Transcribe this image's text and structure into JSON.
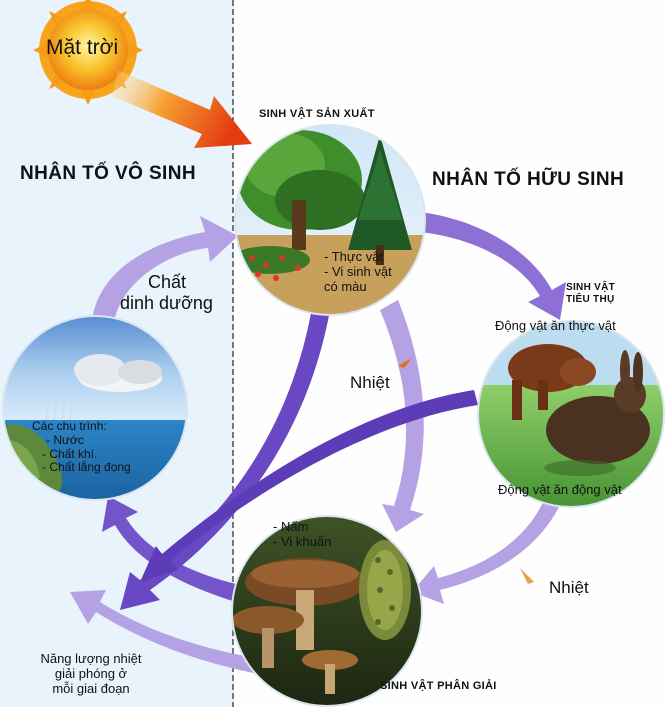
{
  "sun_label": "Mặt trời",
  "abiotic_title": "NHÂN TỐ VÔ SINH",
  "biotic_title": "NHÂN TỐ HỮU SINH",
  "producer": {
    "title": "SINH VẬT SẢN XUẤT",
    "items": [
      "- Thực vật",
      "- Vi sinh vật",
      "có màu"
    ]
  },
  "consumer": {
    "title_line1": "SINH VẬT",
    "title_line2": "TIÊU THỤ",
    "herbivore": "Động vật ăn thực vật",
    "carnivore": "Động  vật ăn động vật"
  },
  "decomposer": {
    "title": "SINH VẬT PHÂN GIẢI",
    "items": [
      "- Nấm",
      "- Vi khuẩn"
    ]
  },
  "cycles": {
    "heading": "Các chu trình:",
    "items": [
      "- Nước",
      "- Chất khí.",
      "- Chất lắng đọng"
    ]
  },
  "nutrients_line1": "Chất",
  "nutrients_line2": "dinh dưỡng",
  "heat_label_1": "Nhiệt",
  "heat_label_2": "Nhiệt",
  "energy_note": [
    "Năng lượng nhiệt",
    "giải phóng ở",
    "mỗi giai đoạn"
  ],
  "colors": {
    "abiotic_bg": "#e8f3fb",
    "biotic_bg": "#fefefe",
    "arrow_purple": "#6f4fc6",
    "arrow_light": "#b7a4e6",
    "sun": "#f6a21a",
    "divider": "#222222"
  }
}
